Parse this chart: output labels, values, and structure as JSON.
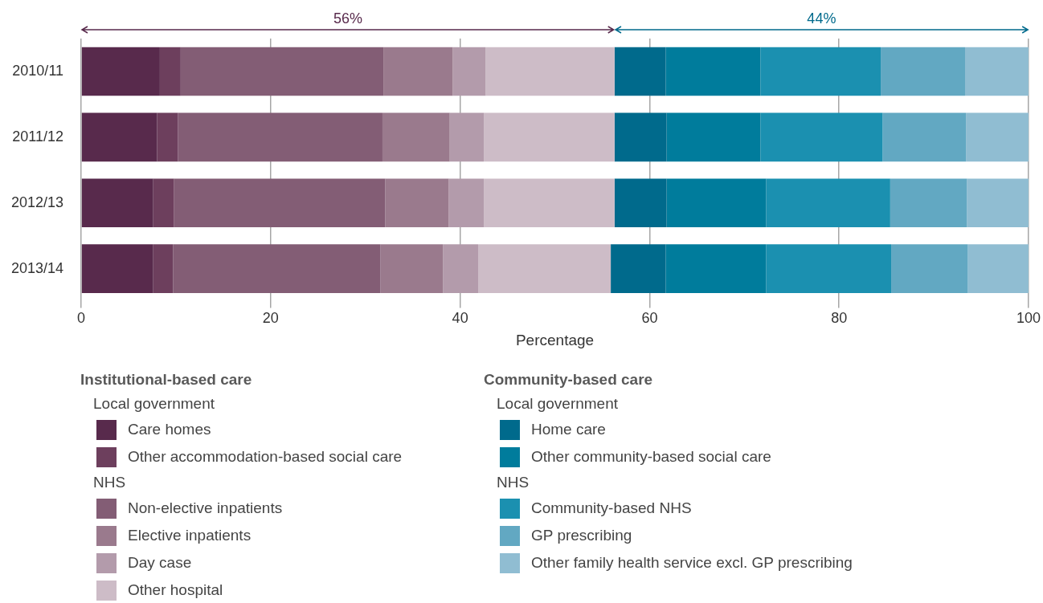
{
  "chart_data": {
    "type": "bar",
    "orientation": "horizontal",
    "stacked": true,
    "categories": [
      "2010/11",
      "2011/12",
      "2012/13",
      "2013/14"
    ],
    "xlabel": "Percentage",
    "xlim": [
      0,
      100
    ],
    "xticks": [
      0,
      20,
      40,
      60,
      80,
      100
    ],
    "grid": "x",
    "legend": "bottom",
    "annotations": [
      "56%",
      "44%",
      "Institutional-based care",
      "Local government",
      "NHS",
      "Community-based care",
      "Local government",
      "NHS"
    ],
    "series": [
      {
        "name": "Care homes",
        "color": "#582a4c",
        "values": [
          8.3,
          8.0,
          7.6,
          7.6
        ]
      },
      {
        "name": "Other accommodation-based social care",
        "color": "#6d3f5d",
        "values": [
          2.2,
          2.2,
          2.2,
          2.1
        ]
      },
      {
        "name": "Non-elective inpatients",
        "color": "#835d75",
        "values": [
          21.4,
          21.6,
          22.3,
          21.9
        ]
      },
      {
        "name": "Elective inpatients",
        "color": "#9a7a8d",
        "values": [
          7.3,
          7.1,
          6.7,
          6.6
        ]
      },
      {
        "name": "Day case",
        "color": "#b39bab",
        "values": [
          3.5,
          3.6,
          3.7,
          3.7
        ]
      },
      {
        "name": "Other hospital",
        "color": "#cdbcc7",
        "values": [
          13.6,
          13.8,
          13.8,
          14.0
        ]
      },
      {
        "name": "Home care",
        "color": "#006a8c",
        "values": [
          5.4,
          5.5,
          5.5,
          5.8
        ]
      },
      {
        "name": "Other community-based social care",
        "color": "#007c9c",
        "values": [
          10.0,
          9.9,
          10.5,
          10.6
        ]
      },
      {
        "name": "Community-based NHS",
        "color": "#1b90b0",
        "values": [
          12.7,
          12.9,
          13.1,
          13.2
        ]
      },
      {
        "name": "GP prescribing",
        "color": "#62a8c2",
        "values": [
          8.9,
          8.8,
          8.1,
          8.1
        ]
      },
      {
        "name": "Other family health service excl. GP prescribing",
        "color": "#90bdd2",
        "values": [
          6.7,
          6.6,
          6.5,
          6.4
        ]
      }
    ]
  }
}
